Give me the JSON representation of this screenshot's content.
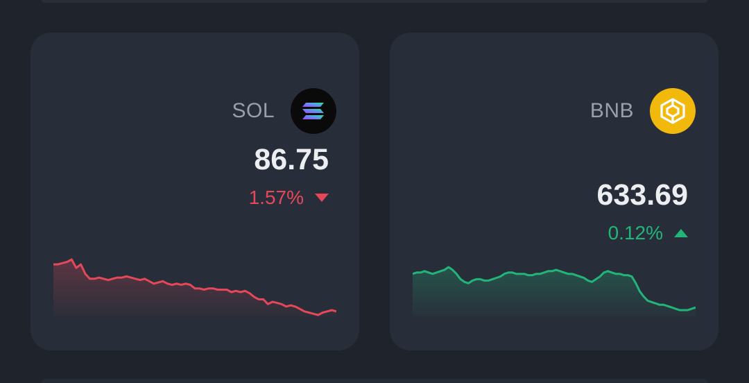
{
  "cards": [
    {
      "symbol": "SOL",
      "icon": "solana-logo-icon",
      "price": "86.75",
      "change": "1.57%",
      "direction": "down",
      "color": "#e6485a",
      "spark": [
        82,
        82,
        83,
        84,
        86,
        79,
        82,
        74,
        70,
        70,
        71,
        70,
        69,
        70,
        71,
        71,
        72,
        71,
        70,
        69,
        70,
        68,
        66,
        67,
        68,
        66,
        65,
        66,
        65,
        66,
        65,
        62,
        62,
        61,
        62,
        62,
        61,
        61,
        61,
        59,
        60,
        59,
        60,
        58,
        55,
        53,
        53,
        49,
        51,
        50,
        49,
        47,
        48,
        47,
        45,
        43,
        42,
        41,
        40,
        42,
        43,
        44,
        43
      ]
    },
    {
      "symbol": "BNB",
      "icon": "bnb-logo-icon",
      "price": "633.69",
      "change": "0.12%",
      "direction": "up",
      "color": "#22b57a",
      "spark": [
        77,
        78,
        78,
        79,
        78,
        77,
        78,
        79,
        80,
        82,
        80,
        77,
        73,
        71,
        70,
        72,
        73,
        73,
        72,
        72,
        73,
        74,
        75,
        77,
        78,
        78,
        77,
        77,
        77,
        76,
        76,
        77,
        77,
        78,
        79,
        79,
        80,
        79,
        78,
        77,
        77,
        76,
        75,
        74,
        72,
        71,
        73,
        75,
        78,
        79,
        78,
        77,
        77,
        76,
        76,
        75,
        70,
        64,
        60,
        57,
        56,
        55,
        54,
        54,
        53,
        52,
        51,
        50,
        50,
        50,
        51,
        52
      ]
    }
  ]
}
